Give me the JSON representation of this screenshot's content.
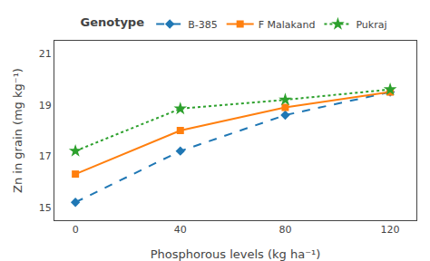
{
  "chart_data": {
    "type": "line",
    "x": [
      0,
      40,
      80,
      120
    ],
    "series": [
      {
        "name": "B-385",
        "values": [
          15.2,
          17.2,
          18.6,
          19.5
        ],
        "marker": "diamond",
        "line_style": "dash"
      },
      {
        "name": "F Malakand",
        "values": [
          16.3,
          18.0,
          18.9,
          19.5
        ],
        "marker": "square",
        "line_style": "solid"
      },
      {
        "name": "Pukraj",
        "values": [
          17.2,
          18.85,
          19.2,
          19.6
        ],
        "marker": "star",
        "line_style": "dot"
      }
    ],
    "xlabel": "Phosphorous levels (kg ha⁻¹)",
    "ylabel": "Zn in grain (mg kg⁻¹)",
    "legend_title": "Genotype",
    "xlim": [
      -8,
      130
    ],
    "xticks": [
      0,
      40,
      80,
      120
    ],
    "ylim": [
      14.5,
      21.5
    ],
    "yticks": [
      15,
      17,
      19,
      21
    ],
    "grid": false,
    "legend": "top"
  }
}
